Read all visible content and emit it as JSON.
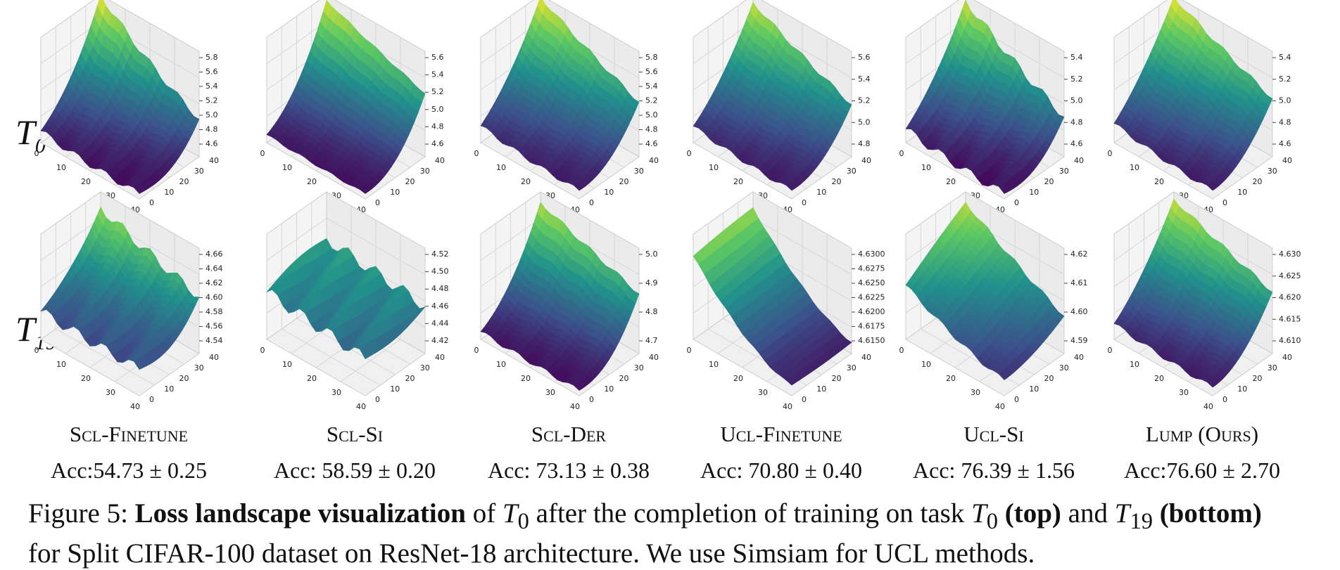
{
  "row_labels": [
    {
      "symbol": "T",
      "subscript": "0"
    },
    {
      "symbol": "T",
      "subscript": "19"
    }
  ],
  "axis_ticks": [
    "0",
    "10",
    "20",
    "30",
    "40"
  ],
  "panels": [
    {
      "method": "Scl-Finetune",
      "accuracy": "Acc:54.73 ± 0.25",
      "z_ticks": [
        [
          "4.6",
          "4.8",
          "5.0",
          "5.2",
          "5.4",
          "5.6",
          "5.8"
        ],
        [
          "4.54",
          "4.56",
          "4.58",
          "4.60",
          "4.62",
          "4.64",
          "4.66"
        ]
      ]
    },
    {
      "method": "Scl-Si",
      "accuracy": "Acc: 58.59 ± 0.20",
      "z_ticks": [
        [
          "4.6",
          "4.8",
          "5.0",
          "5.2",
          "5.4",
          "5.6"
        ],
        [
          "4.42",
          "4.44",
          "4.46",
          "4.48",
          "4.50",
          "4.52"
        ]
      ]
    },
    {
      "method": "Scl-Der",
      "accuracy": "Acc: 73.13 ± 0.38",
      "z_ticks": [
        [
          "4.6",
          "4.8",
          "5.0",
          "5.2",
          "5.4",
          "5.6",
          "5.8"
        ],
        [
          "4.7",
          "4.8",
          "4.9",
          "5.0"
        ]
      ]
    },
    {
      "method": "Ucl-Finetune",
      "accuracy": "Acc: 70.80 ± 0.40",
      "z_ticks": [
        [
          "4.8",
          "5.0",
          "5.2",
          "5.4",
          "5.6"
        ],
        [
          "4.6150",
          "4.6175",
          "4.6200",
          "4.6225",
          "4.6250",
          "4.6275",
          "4.6300"
        ]
      ]
    },
    {
      "method": "Ucl-Si",
      "accuracy": "Acc: 76.39 ± 1.56",
      "z_ticks": [
        [
          "4.6",
          "4.8",
          "5.0",
          "5.2",
          "5.4"
        ],
        [
          "4.59",
          "4.60",
          "4.61",
          "4.62"
        ]
      ]
    },
    {
      "method": "Lump (Ours)",
      "accuracy": "Acc:76.60 ± 2.70",
      "z_ticks": [
        [
          "4.6",
          "4.8",
          "5.0",
          "5.2",
          "5.4"
        ],
        [
          "4.610",
          "4.615",
          "4.620",
          "4.625",
          "4.630"
        ]
      ]
    }
  ],
  "caption": [
    "Figure 5:",
    "Loss landscape visualization",
    "of",
    "T",
    "0",
    "after the completion of training on task",
    "T",
    "0",
    "(top)",
    "and",
    "T",
    "19",
    "(bottom)",
    "for Split CIFAR-100 dataset on ResNet-18 architecture. We use Simsiam for UCL methods."
  ]
}
